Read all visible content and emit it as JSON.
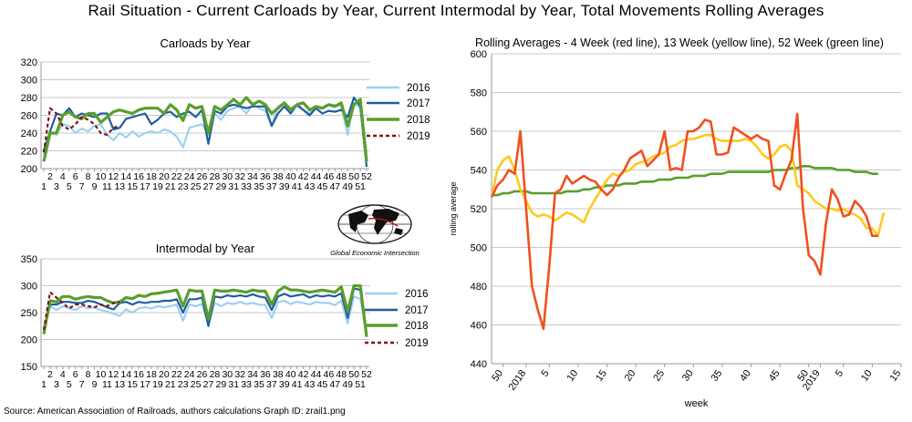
{
  "title": "Rail Situation - Current Carloads by Year, Current Intermodal by Year, Total Movements Rolling Averages",
  "source": "Source: American Association of Railroads, authors calculations   Graph ID: zrail1.png",
  "logo": {
    "text": "Global Economic Intersection"
  },
  "colors": {
    "s2016": "#9fd0f2",
    "s2017": "#1f5f9e",
    "s2018": "#5a9e2c",
    "s2019": "#7b1818",
    "red": "#f0501e",
    "yellow": "#ffc91e",
    "green": "#5a9e2c",
    "grid": "#c8c8c8"
  },
  "chart_data": [
    {
      "type": "line",
      "title": "Carloads by Year",
      "ylim": [
        200,
        320
      ],
      "yticks": [
        200,
        220,
        240,
        260,
        280,
        300,
        320
      ],
      "xlabels_even": [
        "2",
        "4",
        "6",
        "8",
        "10",
        "12",
        "14",
        "16",
        "18",
        "20",
        "22",
        "24",
        "26",
        "28",
        "30",
        "32",
        "34",
        "36",
        "38",
        "40",
        "42",
        "44",
        "46",
        "48",
        "50",
        "52"
      ],
      "xlabels_odd": [
        "1",
        "3",
        "5",
        "7",
        "9",
        "11",
        "13",
        "15",
        "17",
        "19",
        "21",
        "23",
        "25",
        "27",
        "29",
        "31",
        "33",
        "35",
        "37",
        "39",
        "41",
        "43",
        "45",
        "47",
        "49",
        "51"
      ],
      "legend": [
        "2016",
        "2017",
        "2018",
        "2019"
      ],
      "series": [
        {
          "name": "2016",
          "values": [
            215,
            242,
            238,
            250,
            248,
            240,
            245,
            242,
            248,
            250,
            238,
            232,
            240,
            235,
            242,
            236,
            240,
            242,
            240,
            244,
            242,
            236,
            224,
            246,
            248,
            250,
            238,
            262,
            255,
            265,
            268,
            270,
            262,
            272,
            268,
            265,
            248,
            270,
            274,
            268,
            270,
            266,
            262,
            270,
            268,
            272,
            272,
            270,
            238,
            274,
            268,
            210
          ]
        },
        {
          "name": "2017",
          "values": [
            220,
            242,
            262,
            260,
            268,
            258,
            262,
            260,
            258,
            262,
            262,
            244,
            246,
            256,
            258,
            260,
            262,
            250,
            255,
            262,
            264,
            258,
            262,
            264,
            258,
            266,
            228,
            265,
            262,
            270,
            272,
            270,
            268,
            270,
            270,
            270,
            248,
            262,
            270,
            262,
            272,
            266,
            260,
            268,
            262,
            265,
            264,
            266,
            258,
            280,
            270,
            202
          ]
        },
        {
          "name": "2018",
          "values": [
            208,
            240,
            240,
            260,
            264,
            258,
            256,
            262,
            262,
            252,
            258,
            264,
            266,
            264,
            262,
            266,
            268,
            268,
            268,
            262,
            272,
            266,
            254,
            272,
            268,
            270,
            240,
            270,
            266,
            272,
            278,
            272,
            280,
            272,
            276,
            272,
            262,
            268,
            274,
            266,
            272,
            274,
            266,
            270,
            268,
            272,
            270,
            274,
            248,
            272,
            278,
            208
          ]
        },
        {
          "name": "2019",
          "values": [
            218,
            268,
            262,
            248,
            244,
            250,
            258,
            255,
            250,
            240,
            238,
            246,
            248
          ]
        }
      ]
    },
    {
      "type": "line",
      "title": "Intermodal by Year",
      "ylim": [
        150,
        350
      ],
      "yticks": [
        150,
        200,
        250,
        300,
        350
      ],
      "xlabels_even": [
        "2",
        "4",
        "6",
        "8",
        "10",
        "12",
        "14",
        "16",
        "18",
        "20",
        "22",
        "24",
        "26",
        "28",
        "30",
        "32",
        "34",
        "36",
        "38",
        "40",
        "42",
        "44",
        "46",
        "48",
        "50",
        "52"
      ],
      "xlabels_odd": [
        "1",
        "3",
        "5",
        "7",
        "9",
        "11",
        "13",
        "15",
        "17",
        "19",
        "21",
        "23",
        "25",
        "27",
        "29",
        "31",
        "33",
        "35",
        "37",
        "39",
        "41",
        "43",
        "45",
        "47",
        "49",
        "51"
      ],
      "legend": [
        "2016",
        "2017",
        "2018",
        "2019"
      ],
      "series": [
        {
          "name": "2016",
          "values": [
            225,
            262,
            255,
            262,
            258,
            255,
            262,
            258,
            260,
            255,
            252,
            248,
            244,
            256,
            250,
            258,
            260,
            258,
            262,
            260,
            262,
            265,
            235,
            265,
            262,
            266,
            228,
            268,
            262,
            268,
            266,
            270,
            266,
            268,
            265,
            264,
            240,
            270,
            272,
            266,
            270,
            268,
            265,
            270,
            268,
            268,
            264,
            272,
            230,
            280,
            275,
            215
          ]
        },
        {
          "name": "2017",
          "values": [
            215,
            265,
            265,
            270,
            270,
            268,
            268,
            272,
            270,
            265,
            260,
            256,
            268,
            270,
            265,
            270,
            268,
            270,
            270,
            272,
            272,
            275,
            250,
            275,
            275,
            278,
            225,
            280,
            278,
            282,
            280,
            282,
            280,
            284,
            280,
            278,
            255,
            280,
            285,
            280,
            282,
            284,
            278,
            282,
            280,
            282,
            280,
            286,
            240,
            295,
            292,
            205
          ]
        },
        {
          "name": "2018",
          "values": [
            210,
            272,
            270,
            280,
            280,
            275,
            278,
            280,
            278,
            278,
            272,
            268,
            270,
            278,
            276,
            282,
            280,
            285,
            286,
            288,
            290,
            292,
            262,
            292,
            290,
            290,
            238,
            292,
            290,
            290,
            292,
            290,
            288,
            292,
            290,
            290,
            265,
            290,
            298,
            292,
            292,
            290,
            288,
            290,
            292,
            290,
            288,
            298,
            252,
            300,
            300,
            205
          ]
        },
        {
          "name": "2019",
          "values": [
            218,
            288,
            278,
            268,
            258,
            265,
            265,
            262,
            260,
            265,
            262,
            268,
            270
          ]
        }
      ]
    },
    {
      "type": "line",
      "title": "Rolling Averages - 4 Week (red line), 13 Week (yellow line), 52 Week (green line)",
      "xlabel": "week",
      "ylabel": "rolling average",
      "ylim": [
        440,
        600
      ],
      "yticks": [
        440,
        460,
        480,
        500,
        520,
        540,
        560,
        580,
        600
      ],
      "xticks": [
        "50",
        "2018",
        "5",
        "10",
        "15",
        "20",
        "25",
        "30",
        "35",
        "40",
        "45",
        "50",
        "2019",
        "5",
        "10",
        "15"
      ],
      "series": [
        {
          "name": "4 Week",
          "values": [
            526,
            532,
            535,
            540,
            538,
            560,
            520,
            480,
            468,
            458,
            490,
            528,
            530,
            537,
            533,
            535,
            537,
            535,
            534,
            530,
            527,
            530,
            536,
            540,
            546,
            548,
            550,
            542,
            545,
            548,
            560,
            540,
            541,
            540,
            560,
            560,
            562,
            566,
            565,
            548,
            548,
            549,
            562,
            560,
            558,
            556,
            558,
            556,
            555,
            532,
            530,
            538,
            545,
            569,
            520,
            496,
            493,
            486,
            513,
            530,
            525,
            516,
            517,
            524,
            521,
            516,
            506,
            506
          ]
        },
        {
          "name": "13 Week",
          "values": [
            526,
            540,
            545,
            547,
            540,
            530,
            524,
            518,
            516,
            517,
            516,
            514,
            516,
            518,
            517,
            515,
            513,
            520,
            525,
            530,
            535,
            538,
            537,
            539,
            540,
            543,
            544,
            545,
            547,
            548,
            549,
            552,
            553,
            555,
            556,
            556,
            557,
            558,
            558,
            556,
            555,
            555,
            555,
            555,
            556,
            555,
            552,
            548,
            546,
            548,
            552,
            553,
            550,
            532,
            530,
            528,
            524,
            522,
            520,
            520,
            519,
            520,
            518,
            517,
            515,
            510,
            510,
            506,
            518
          ]
        },
        {
          "name": "52 Week",
          "values": [
            527,
            527,
            528,
            528,
            529,
            529,
            529,
            528,
            528,
            528,
            528,
            528,
            528,
            529,
            529,
            529,
            530,
            530,
            531,
            531,
            532,
            532,
            532,
            533,
            533,
            533,
            534,
            534,
            534,
            535,
            535,
            535,
            536,
            536,
            536,
            537,
            537,
            537,
            538,
            538,
            538,
            539,
            539,
            539,
            539,
            539,
            539,
            539,
            539,
            540,
            540,
            540,
            541,
            541,
            542,
            542,
            541,
            541,
            541,
            541,
            540,
            540,
            540,
            539,
            539,
            539,
            538,
            538
          ]
        }
      ]
    }
  ]
}
